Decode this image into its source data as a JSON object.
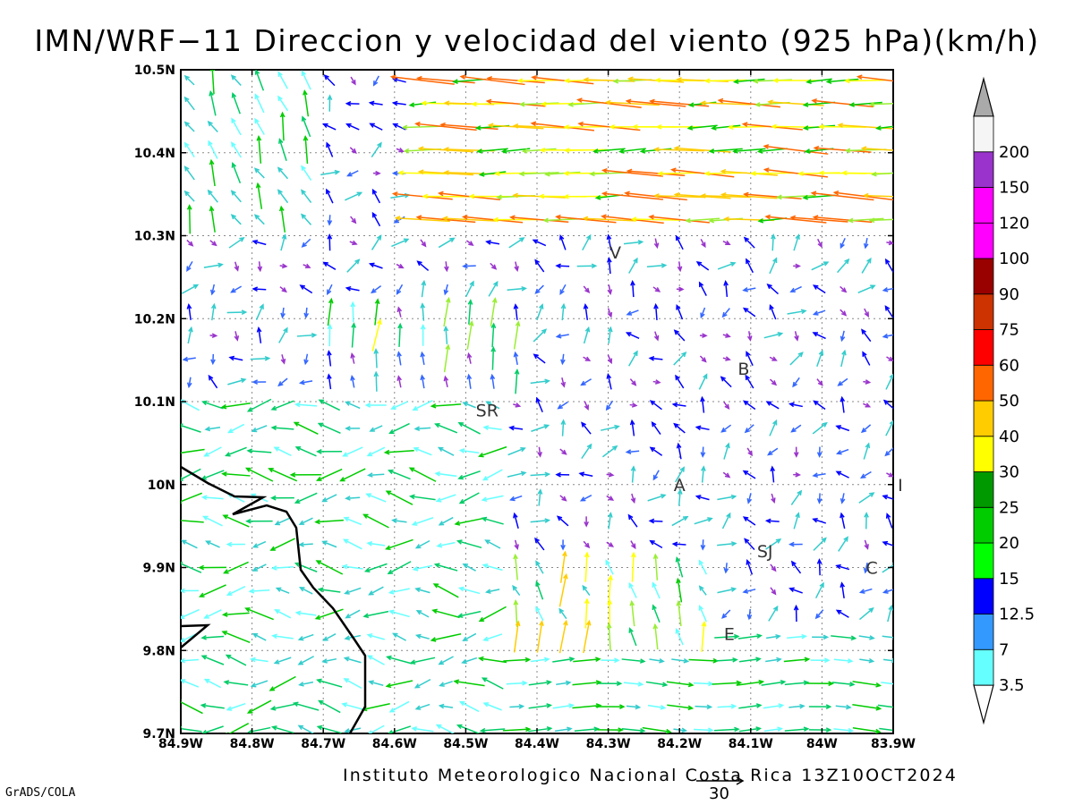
{
  "title": "IMN/WRF−11 Direccion y velocidad del viento (925 hPa)(km/h)",
  "footer": "Instituto Meteorologico Nacional Costa Rica 13Z10OCT2024",
  "credit": "GrADS/COLA",
  "reference_vector_value": "30",
  "map": {
    "lon_range": [
      -84.9,
      -83.9
    ],
    "lat_range": [
      9.7,
      10.5
    ],
    "lon_ticks": [
      "84.9W",
      "84.8W",
      "84.7W",
      "84.6W",
      "84.5W",
      "84.4W",
      "84.3W",
      "84.2W",
      "84.1W",
      "84W",
      "83.9W"
    ],
    "lat_ticks": [
      "9.7N",
      "9.8N",
      "9.9N",
      "10N",
      "10.1N",
      "10.2N",
      "10.3N",
      "10.4N",
      "10.5N"
    ],
    "gridlines": "dotted",
    "cities": [
      {
        "label": "V",
        "lon": -84.29,
        "lat": 10.28
      },
      {
        "label": "SR",
        "lon": -84.47,
        "lat": 10.09
      },
      {
        "label": "B",
        "lon": -84.11,
        "lat": 10.14
      },
      {
        "label": "A",
        "lon": -84.2,
        "lat": 10.0
      },
      {
        "label": "I",
        "lon": -83.89,
        "lat": 10.0
      },
      {
        "label": "SJ",
        "lon": -84.08,
        "lat": 9.92
      },
      {
        "label": "C",
        "lon": -83.93,
        "lat": 9.9
      },
      {
        "label": "E",
        "lon": -84.13,
        "lat": 9.82
      }
    ]
  },
  "colorbar": {
    "labels": [
      "3.5",
      "7",
      "12.5",
      "15",
      "20",
      "25",
      "30",
      "40",
      "50",
      "60",
      "75",
      "90",
      "100",
      "120",
      "150",
      "200"
    ],
    "colors": [
      "#66ffff",
      "#3399ff",
      "#0000ff",
      "#00ff00",
      "#00cc00",
      "#009900",
      "#ffff00",
      "#ffcc00",
      "#ff6600",
      "#ff0000",
      "#cc3300",
      "#990000",
      "#ff00ff",
      "#ff00ff",
      "#9933cc",
      "#f5f5f5"
    ],
    "end_low_color": "#ffffff",
    "end_high_color": "#aaaaaa"
  }
}
